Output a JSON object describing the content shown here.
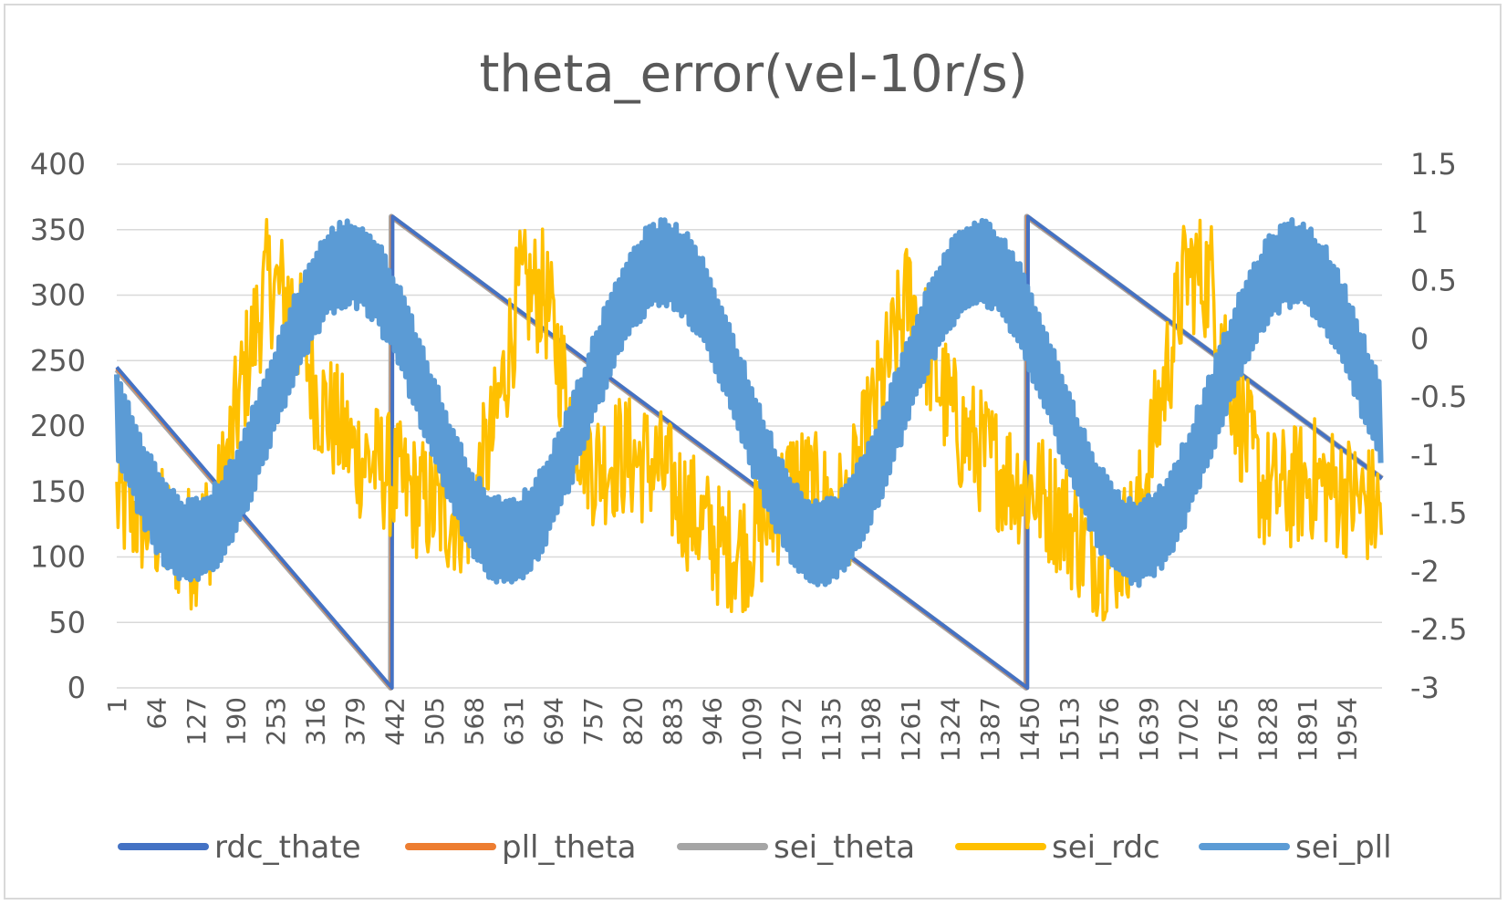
{
  "chart_data": {
    "type": "line",
    "title": "theta_error(vel-10r/s)",
    "xlabel": "",
    "ylabel": "",
    "x_range": [
      1,
      2010
    ],
    "x_ticks": [
      "1",
      "64",
      "127",
      "190",
      "253",
      "316",
      "379",
      "442",
      "505",
      "568",
      "631",
      "694",
      "757",
      "820",
      "883",
      "946",
      "1009",
      "1072",
      "1135",
      "1198",
      "1261",
      "1324",
      "1387",
      "1450",
      "1513",
      "1576",
      "1639",
      "1702",
      "1765",
      "1828",
      "1891",
      "1954"
    ],
    "y_left": {
      "ticks": [
        "0",
        "50",
        "100",
        "150",
        "200",
        "250",
        "300",
        "350",
        "400"
      ],
      "range": [
        0,
        400
      ]
    },
    "y_right": {
      "ticks": [
        "-3",
        "-2.5",
        "-2",
        "-1.5",
        "-1",
        "-0.5",
        "0",
        "0.5",
        "1",
        "1.5"
      ],
      "range": [
        -3,
        1.5
      ]
    },
    "grid": "horizontal",
    "legend_position": "bottom",
    "series": [
      {
        "name": "rdc_thate",
        "color": "#4472C4",
        "axis": "left",
        "kind": "sawtooth",
        "segments": [
          {
            "x": [
              1,
              438
            ],
            "y": [
              245,
              0
            ]
          },
          {
            "x": [
              438,
              439
            ],
            "y": [
              0,
              360
            ]
          },
          {
            "x": [
              439,
              1447
            ],
            "y": [
              360,
              0
            ]
          },
          {
            "x": [
              1447,
              1448
            ],
            "y": [
              0,
              360
            ]
          },
          {
            "x": [
              1448,
              2010
            ],
            "y": [
              360,
              160
            ]
          }
        ]
      },
      {
        "name": "pll_theta",
        "color": "#ED7D31",
        "axis": "left",
        "kind": "sawtooth",
        "segments": [
          {
            "x": [
              1,
              437
            ],
            "y": [
              244,
              0
            ]
          },
          {
            "x": [
              437,
              438
            ],
            "y": [
              0,
              360
            ]
          },
          {
            "x": [
              438,
              1446
            ],
            "y": [
              360,
              0
            ]
          },
          {
            "x": [
              1446,
              1447
            ],
            "y": [
              0,
              360
            ]
          },
          {
            "x": [
              1447,
              2010
            ],
            "y": [
              360,
              160
            ]
          }
        ]
      },
      {
        "name": "sei_theta",
        "color": "#A5A5A5",
        "axis": "left",
        "kind": "sawtooth",
        "segments": [
          {
            "x": [
              1,
              436
            ],
            "y": [
              243,
              0
            ]
          },
          {
            "x": [
              436,
              437
            ],
            "y": [
              0,
              360
            ]
          },
          {
            "x": [
              437,
              1445
            ],
            "y": [
              360,
              0
            ]
          },
          {
            "x": [
              1445,
              1446
            ],
            "y": [
              0,
              360
            ]
          },
          {
            "x": [
              1446,
              2010
            ],
            "y": [
              360,
              160
            ]
          }
        ]
      },
      {
        "name": "sei_rdc",
        "color": "#FFC000",
        "axis": "right",
        "kind": "noisy",
        "x": [
          1,
          60,
          120,
          160,
          200,
          240,
          280,
          320,
          380,
          420,
          460,
          520,
          560,
          600,
          640,
          680,
          720,
          760,
          800,
          860,
          900,
          960,
          1000,
          1040,
          1080,
          1120,
          1160,
          1200,
          1260,
          1300,
          1340,
          1380,
          1420,
          1460,
          1500,
          1540,
          1580,
          1620,
          1660,
          1700,
          1740,
          1780,
          1820,
          1860,
          1900,
          1940,
          1980,
          2010
        ],
        "y": [
          -1.4,
          -1.6,
          -1.8,
          -1.5,
          -0.4,
          0.5,
          0.3,
          -0.5,
          -1.0,
          -1.1,
          -1.3,
          -1.5,
          -1.5,
          -0.8,
          0.4,
          0.4,
          -0.6,
          -1.1,
          -1.0,
          -1.1,
          -1.4,
          -1.8,
          -1.8,
          -1.5,
          -1.2,
          -1.4,
          -1.5,
          -0.7,
          0.4,
          -0.3,
          -0.8,
          -1.0,
          -1.2,
          -1.3,
          -1.5,
          -1.8,
          -1.9,
          -1.6,
          -0.5,
          0.6,
          0.5,
          -0.6,
          -1.3,
          -1.3,
          -1.2,
          -1.3,
          -1.4,
          -1.5
        ],
        "amplitude": 0.55
      },
      {
        "name": "sei_pll",
        "color": "#5B9BD5",
        "axis": "right",
        "kind": "band",
        "wave": {
          "mean": -0.55,
          "amplitude": 1.2,
          "period": 500,
          "peak_x": 370
        },
        "half_width": 0.38
      }
    ]
  }
}
